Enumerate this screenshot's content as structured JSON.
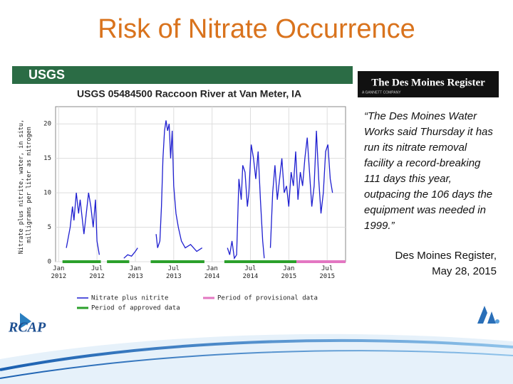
{
  "slide": {
    "title": "Risk of Nitrate Occurrence",
    "quote": "“The Des Moines Water Works said Thursday it has run its nitrate removal facility a record-breaking 111 days this year, outpacing the 106 days the equipment was needed in 1999.”",
    "attribution": [
      "Des Moines Register,",
      "May 28, 2015"
    ],
    "logo_left": "RCAP",
    "newspaper": {
      "name": "The Des Moines Register",
      "tagline": "A GANNETT COMPANY"
    }
  },
  "chart_data": {
    "type": "line",
    "banner": "USGS",
    "title": "USGS 05484500 Raccoon River at Van Meter, IA",
    "ylabel": [
      "Nitrate plus nitrite, water, in situ,",
      "milligrams per liter as nitrogen"
    ],
    "xlim": [
      2011.96,
      2015.74
    ],
    "ylim": [
      0,
      22.5
    ],
    "xticks": [
      {
        "value": 2012.0,
        "label": "Jan 2012"
      },
      {
        "value": 2012.5,
        "label": "Jul 2012"
      },
      {
        "value": 2013.0,
        "label": "Jan 2013"
      },
      {
        "value": 2013.5,
        "label": "Jul 2013"
      },
      {
        "value": 2014.0,
        "label": "Jan 2014"
      },
      {
        "value": 2014.5,
        "label": "Jul 2014"
      },
      {
        "value": 2015.0,
        "label": "Jan 2015"
      },
      {
        "value": 2015.5,
        "label": "Jul 2015"
      }
    ],
    "yticks": [
      0,
      5,
      10,
      15,
      20
    ],
    "grid": true,
    "x": [
      2012.1,
      2012.15,
      2012.18,
      2012.2,
      2012.23,
      2012.26,
      2012.28,
      2012.31,
      2012.33,
      2012.36,
      2012.39,
      2012.42,
      2012.45,
      2012.48,
      2012.5,
      2012.53,
      2012.6,
      2012.85,
      2012.9,
      2012.95,
      2013.0,
      2013.03,
      2013.15,
      2013.27,
      2013.29,
      2013.32,
      2013.34,
      2013.36,
      2013.38,
      2013.4,
      2013.42,
      2013.44,
      2013.46,
      2013.48,
      2013.5,
      2013.53,
      2013.56,
      2013.6,
      2013.65,
      2013.72,
      2013.8,
      2013.87,
      2014.0,
      2014.2,
      2014.23,
      2014.26,
      2014.29,
      2014.32,
      2014.35,
      2014.38,
      2014.4,
      2014.43,
      2014.46,
      2014.48,
      2014.51,
      2014.54,
      2014.57,
      2014.6,
      2014.63,
      2014.66,
      2014.68,
      2014.72,
      2014.76,
      2014.79,
      2014.82,
      2014.85,
      2014.88,
      2014.91,
      2014.94,
      2014.97,
      2015.0,
      2015.03,
      2015.06,
      2015.09,
      2015.12,
      2015.15,
      2015.18,
      2015.21,
      2015.24,
      2015.27,
      2015.3,
      2015.33,
      2015.36,
      2015.39,
      2015.42,
      2015.45,
      2015.48,
      2015.51,
      2015.54,
      2015.57
    ],
    "series": [
      {
        "name": "Nitrate plus nitrite",
        "color": "#1f1fd0",
        "values": [
          2,
          5,
          8,
          6,
          10,
          7,
          9,
          6,
          4,
          7,
          10,
          8,
          5,
          9,
          3,
          1,
          null,
          0.5,
          1,
          0.8,
          1.5,
          2,
          null,
          4,
          2,
          3,
          8,
          15,
          19,
          20.5,
          19,
          20,
          15,
          19,
          11,
          7,
          5,
          3,
          2,
          2.5,
          1.5,
          2,
          null,
          2,
          1,
          3,
          0.5,
          1,
          12,
          9,
          14,
          13,
          8,
          10,
          17,
          15,
          12,
          16,
          9,
          3,
          0.5,
          null,
          2,
          10,
          14,
          9,
          12,
          15,
          10,
          11,
          8,
          13,
          11,
          16,
          9,
          13,
          11,
          15,
          18,
          13,
          8,
          11,
          19,
          12,
          7,
          10,
          16,
          17,
          12,
          10
        ]
      }
    ],
    "periods": [
      {
        "name": "Period of approved data",
        "color": "#2ca02c",
        "ranges": [
          [
            2012.05,
            2012.55
          ],
          [
            2012.63,
            2012.92
          ],
          [
            2013.2,
            2013.9
          ],
          [
            2014.16,
            2015.1
          ]
        ]
      },
      {
        "name": "Period of provisional data",
        "color": "#e377c2",
        "ranges": [
          [
            2015.1,
            2015.74
          ]
        ]
      }
    ]
  }
}
